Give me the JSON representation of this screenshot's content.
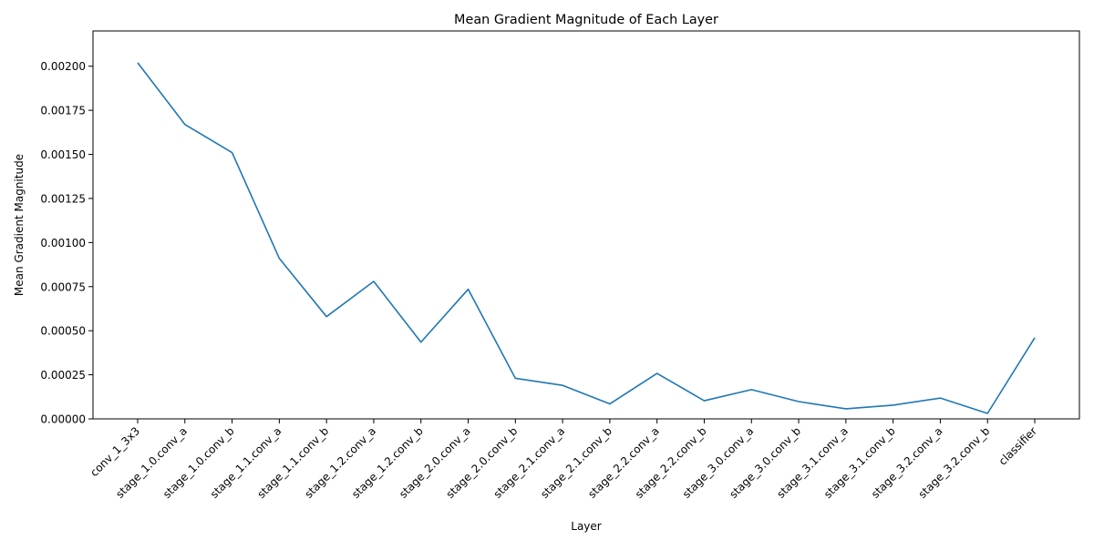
{
  "chart_data": {
    "type": "line",
    "title": "Mean Gradient Magnitude of Each Layer",
    "xlabel": "Layer",
    "ylabel": "Mean Gradient Magnitude",
    "ylim": [
      0,
      0.0022
    ],
    "yticks": [
      "0.00000",
      "0.00025",
      "0.00050",
      "0.00075",
      "0.00100",
      "0.00125",
      "0.00150",
      "0.00175",
      "0.00200"
    ],
    "ytick_values": [
      0,
      0.00025,
      0.0005,
      0.00075,
      0.001,
      0.00125,
      0.0015,
      0.00175,
      0.002
    ],
    "grid": false,
    "line_color": "#1f77b4",
    "categories": [
      "conv_1_3x3",
      "stage_1.0.conv_a",
      "stage_1.0.conv_b",
      "stage_1.1.conv_a",
      "stage_1.1.conv_b",
      "stage_1.2.conv_a",
      "stage_1.2.conv_b",
      "stage_2.0.conv_a",
      "stage_2.0.conv_b",
      "stage_2.1.conv_a",
      "stage_2.1.conv_b",
      "stage_2.2.conv_a",
      "stage_2.2.conv_b",
      "stage_3.0.conv_a",
      "stage_3.0.conv_b",
      "stage_3.1.conv_a",
      "stage_3.1.conv_b",
      "stage_3.2.conv_a",
      "stage_3.2.conv_b",
      "classifier"
    ],
    "values": [
      0.00202,
      0.00167,
      0.00151,
      0.00091,
      0.00058,
      0.00078,
      0.000435,
      0.000735,
      0.00023,
      0.00019,
      8.5e-05,
      0.000258,
      0.000103,
      0.000166,
      9.8e-05,
      5.7e-05,
      7.8e-05,
      0.000118,
      3.1e-05,
      0.00046
    ]
  }
}
